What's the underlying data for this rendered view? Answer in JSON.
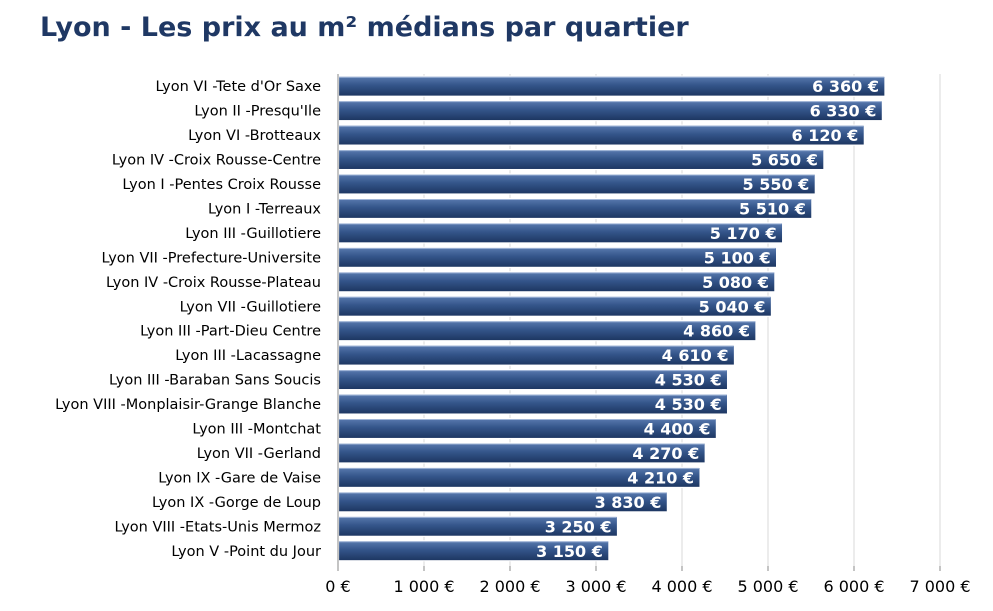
{
  "chart_data": {
    "type": "bar",
    "orientation": "horizontal",
    "title": "Lyon - Les prix au m² médians par quartier",
    "xlabel": "",
    "ylabel": "",
    "xlim": [
      0,
      7000
    ],
    "grid": true,
    "categories": [
      "Lyon VI -Tete d'Or Saxe",
      "Lyon II -Presqu'Ile",
      "Lyon VI -Brotteaux",
      "Lyon IV -Croix Rousse-Centre",
      "Lyon I -Pentes Croix Rousse",
      "Lyon I -Terreaux",
      "Lyon III -Guillotiere",
      "Lyon VII -Prefecture-Universite",
      "Lyon IV -Croix Rousse-Plateau",
      "Lyon VII -Guillotiere",
      "Lyon III -Part-Dieu Centre",
      "Lyon III -Lacassagne",
      "Lyon III -Baraban Sans Soucis",
      "Lyon VIII -Monplaisir-Grange Blanche",
      "Lyon III -Montchat",
      "Lyon VII -Gerland",
      "Lyon IX -Gare de Vaise",
      "Lyon IX -Gorge de Loup",
      "Lyon VIII -Etats-Unis Mermoz",
      "Lyon V -Point du Jour"
    ],
    "values": [
      6360,
      6330,
      6120,
      5650,
      5550,
      5510,
      5170,
      5100,
      5080,
      5040,
      4860,
      4610,
      4530,
      4530,
      4400,
      4270,
      4210,
      3830,
      3250,
      3150
    ],
    "data_labels": [
      "6 360 €",
      "6 330 €",
      "6 120 €",
      "5 650 €",
      "5 550 €",
      "5 510 €",
      "5 170 €",
      "5 100 €",
      "5 080 €",
      "5 040 €",
      "4 860 €",
      "4 610 €",
      "4 530 €",
      "4 530 €",
      "4 400 €",
      "4 270 €",
      "4 210 €",
      "3 830 €",
      "3 250 €",
      "3 150 €"
    ],
    "x_ticks": [
      0,
      1000,
      2000,
      3000,
      4000,
      5000,
      6000,
      7000
    ],
    "x_tick_labels": [
      "0 €",
      "1 000 €",
      "2 000 €",
      "3 000 €",
      "4 000 €",
      "5 000 €",
      "6 000 €",
      "7 000 €"
    ],
    "colors": {
      "bar_top": "#5a7bb0",
      "bar_mid": "#34558a",
      "bar_bottom": "#1c3560",
      "title": "#1f3864",
      "gridline": "#d9d9d9",
      "axis": "#888888"
    }
  }
}
